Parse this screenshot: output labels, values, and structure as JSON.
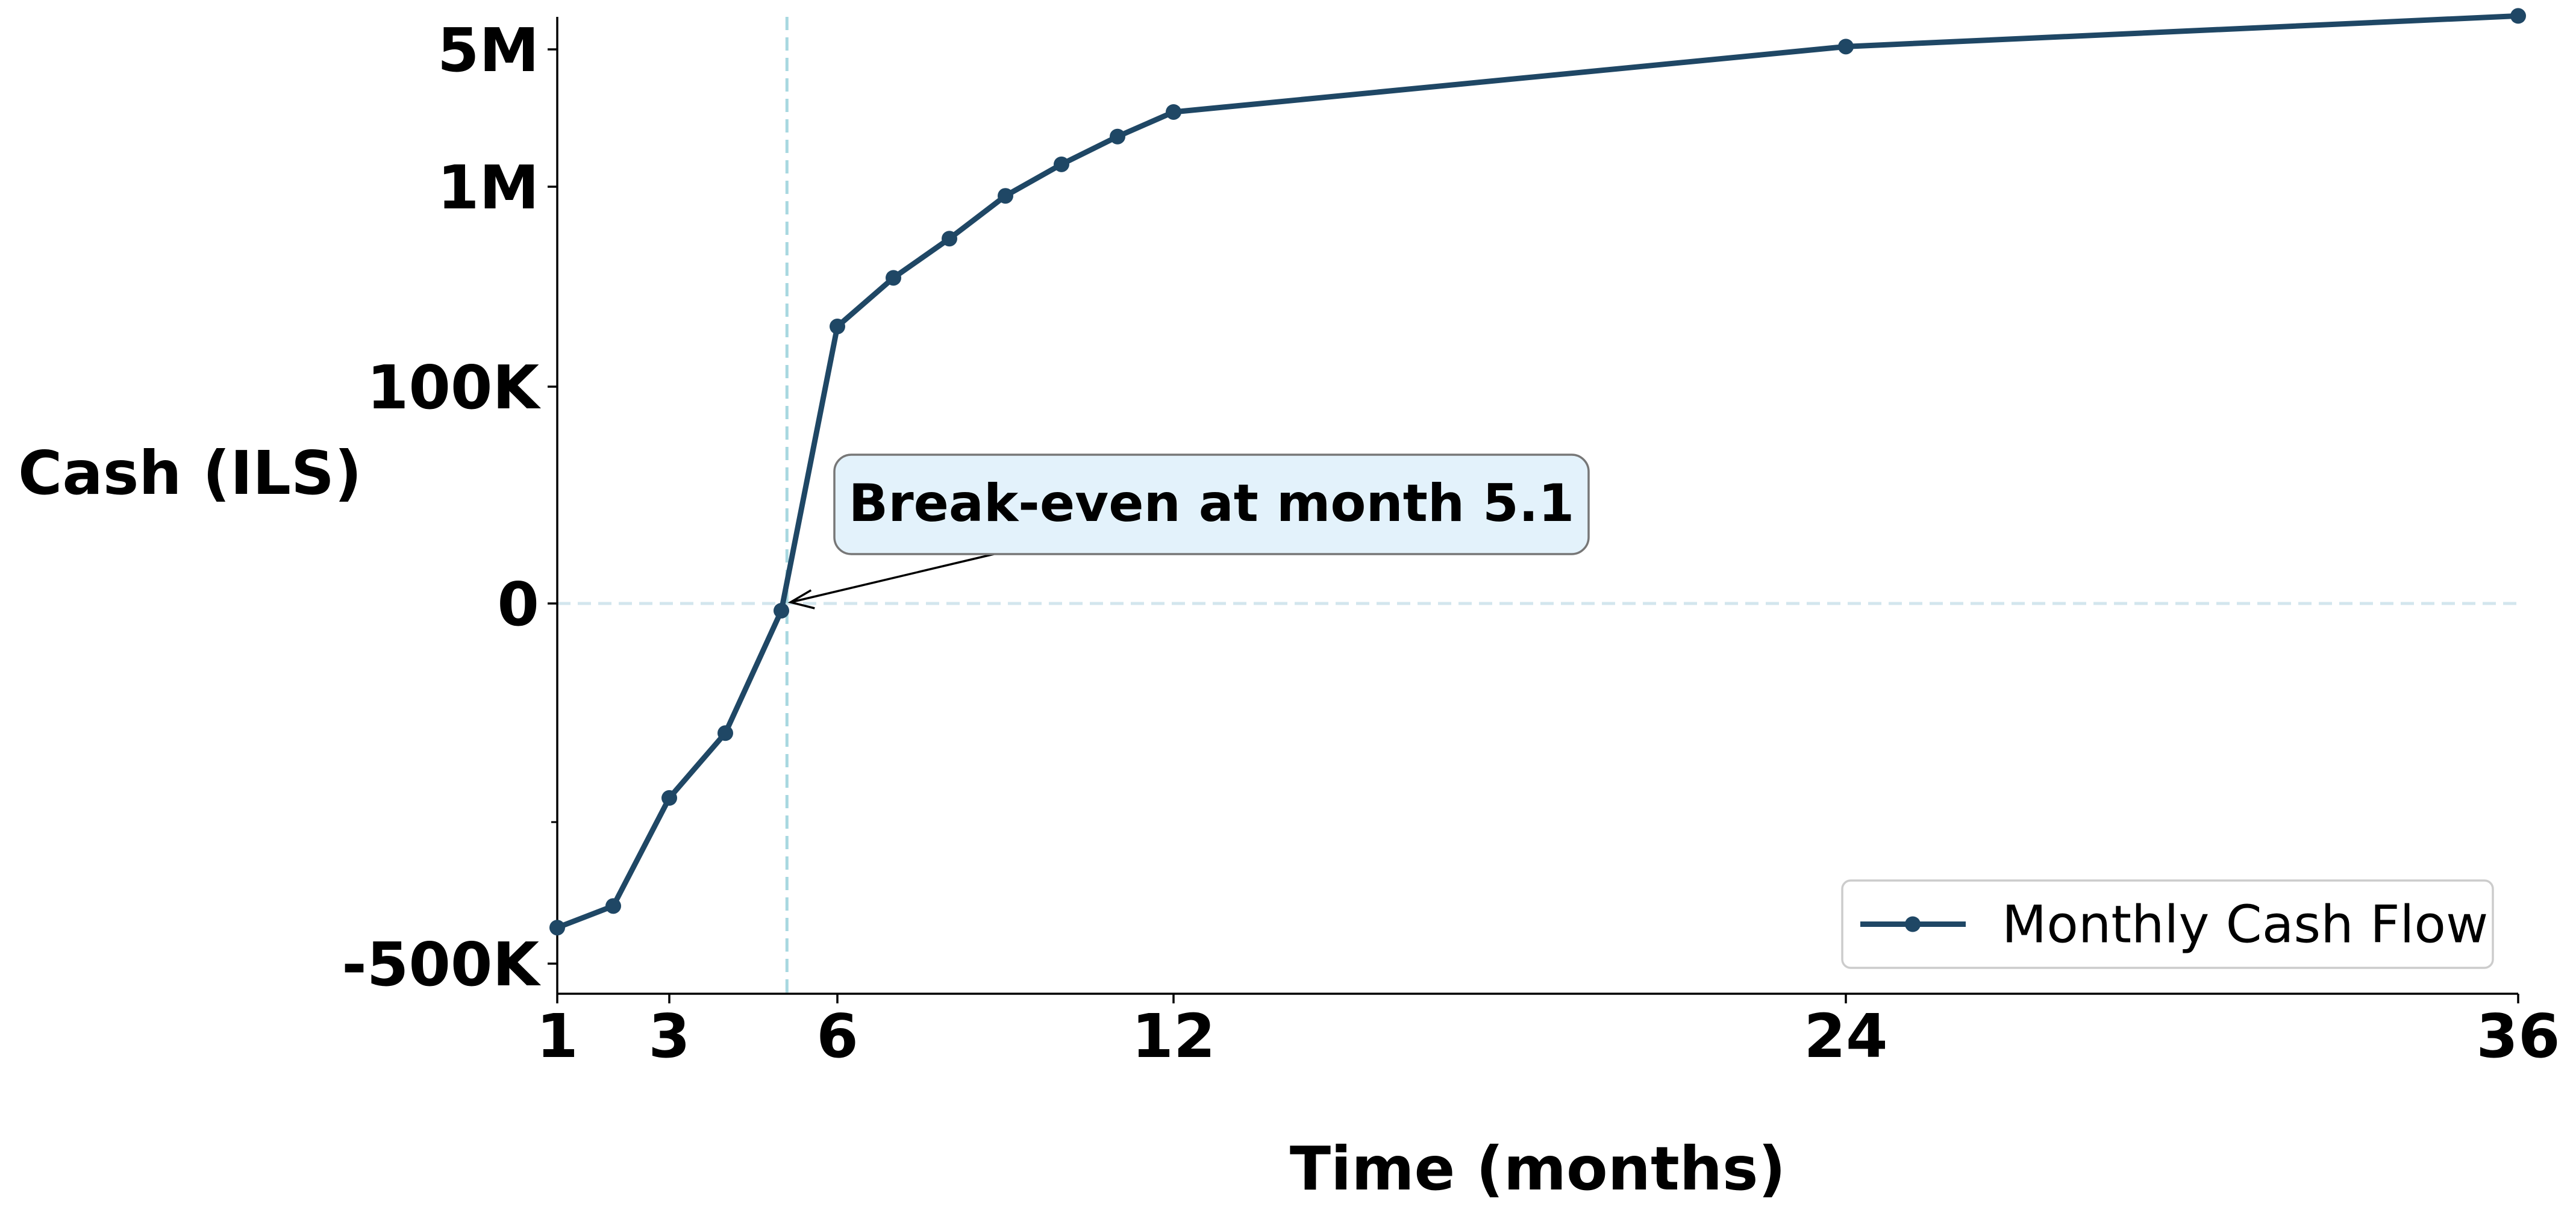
{
  "chart_data": {
    "type": "line",
    "xlabel": "Time (months)",
    "ylabel": "Cash (ILS)",
    "x_ticks": [
      1,
      3,
      6,
      12,
      24,
      36
    ],
    "y_scale": "symlog",
    "y_ticks": [
      {
        "value": -500000,
        "label": "-500K"
      },
      {
        "value": 0,
        "label": "0"
      },
      {
        "value": 100000,
        "label": "100K"
      },
      {
        "value": 1000000,
        "label": "1M"
      },
      {
        "value": 5000000,
        "label": "5M"
      }
    ],
    "xlim": [
      1,
      36
    ],
    "series": [
      {
        "name": "Monthly Cash Flow",
        "color": "#1f4765",
        "points": [
          {
            "x": 1,
            "y": -450000
          },
          {
            "x": 2,
            "y": -420000
          },
          {
            "x": 3,
            "y": -270000
          },
          {
            "x": 4,
            "y": -180000
          },
          {
            "x": 5,
            "y": -10000
          },
          {
            "x": 6,
            "y": 200000
          },
          {
            "x": 7,
            "y": 350000
          },
          {
            "x": 8,
            "y": 550000
          },
          {
            "x": 9,
            "y": 900000
          },
          {
            "x": 10,
            "y": 1300000
          },
          {
            "x": 11,
            "y": 1800000
          },
          {
            "x": 12,
            "y": 2400000
          },
          {
            "x": 24,
            "y": 5200000
          },
          {
            "x": 36,
            "y": 8000000
          }
        ]
      }
    ],
    "reference_lines": {
      "vertical_x": 5.1,
      "horizontal_y": 0,
      "color": "#a8d8e0"
    },
    "annotation": {
      "text": "Break-even at month 5.1",
      "point": {
        "x": 5.1,
        "y": 0
      },
      "box_color": "#e3f2fb"
    },
    "legend": {
      "position": "lower-right",
      "entries": [
        "Monthly Cash Flow"
      ]
    },
    "grid": false
  }
}
